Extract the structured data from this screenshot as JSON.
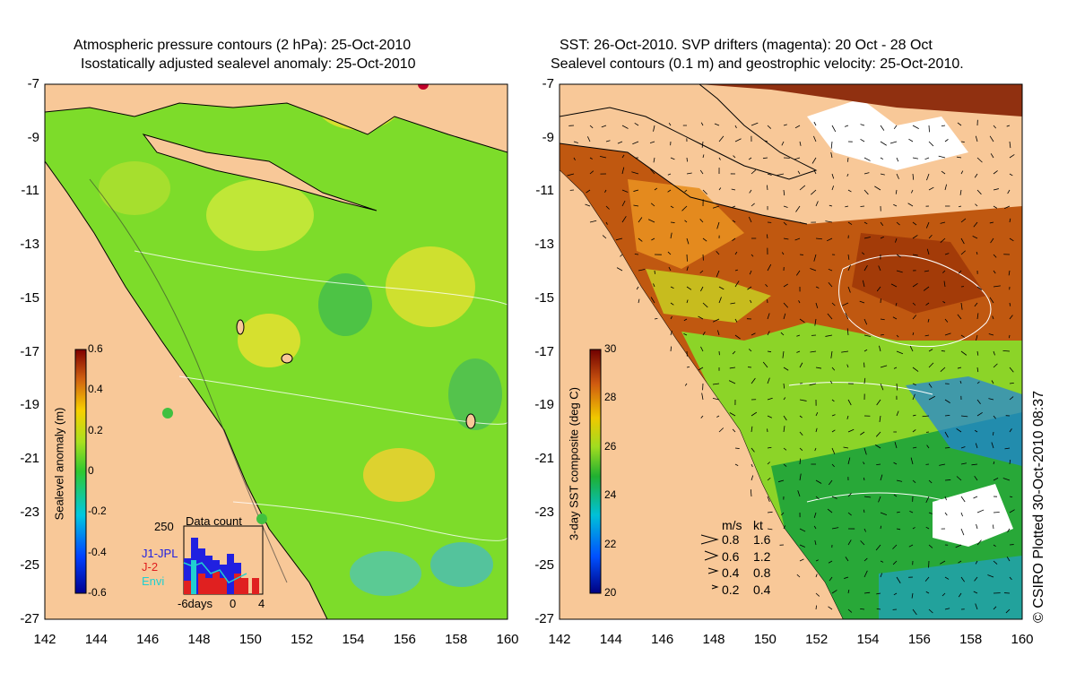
{
  "left_panel": {
    "title_line1": "Atmospheric pressure contours (2 hPa): 25-Oct-2010",
    "title_line2": "Isostatically adjusted sealevel anomaly: 25-Oct-2010",
    "colorbar_label": "Sealevel anomaly (m)",
    "colorbar_ticks": [
      "0.6",
      "0.4",
      "0.2",
      "0",
      "-0.2",
      "-0.4",
      "-0.6"
    ],
    "inset": {
      "title": "Data count",
      "ymax_label": "250",
      "legend": [
        "J1-JPL",
        "J-2",
        "Envi"
      ],
      "legend_colors": [
        "#2020e0",
        "#e02020",
        "#20d0d0"
      ],
      "xlabel": "-6days",
      "xticks": [
        "0",
        "4"
      ]
    }
  },
  "right_panel": {
    "title_line1": "SST: 26-Oct-2010. SVP drifters (magenta): 20 Oct - 28 Oct",
    "title_line2": "Sealevel contours (0.1 m) and geostrophic velocity: 25-Oct-2010.",
    "colorbar_label": "3-day SST composite (deg C)",
    "colorbar_ticks": [
      "30",
      "28",
      "26",
      "24",
      "22",
      "20"
    ],
    "vector_key": {
      "header_ms": "m/s",
      "header_kt": "kt",
      "rows": [
        {
          "ms": "0.8",
          "kt": "1.6"
        },
        {
          "ms": "0.6",
          "kt": "1.2"
        },
        {
          "ms": "0.4",
          "kt": "0.8"
        },
        {
          "ms": "0.2",
          "kt": "0.4"
        }
      ]
    }
  },
  "lat_ticks": [
    "-7",
    "-9",
    "-11",
    "-13",
    "-15",
    "-17",
    "-19",
    "-21",
    "-23",
    "-25",
    "-27"
  ],
  "lon_ticks": [
    "142",
    "144",
    "146",
    "148",
    "150",
    "152",
    "154",
    "156",
    "158",
    "160"
  ],
  "copyright": "© CSIRO Plotted 30-Oct-2010 08:37",
  "colors": {
    "land": "#f8c898",
    "ocean_green": "#7ddc2a",
    "sst_warm": "#c04a10"
  }
}
